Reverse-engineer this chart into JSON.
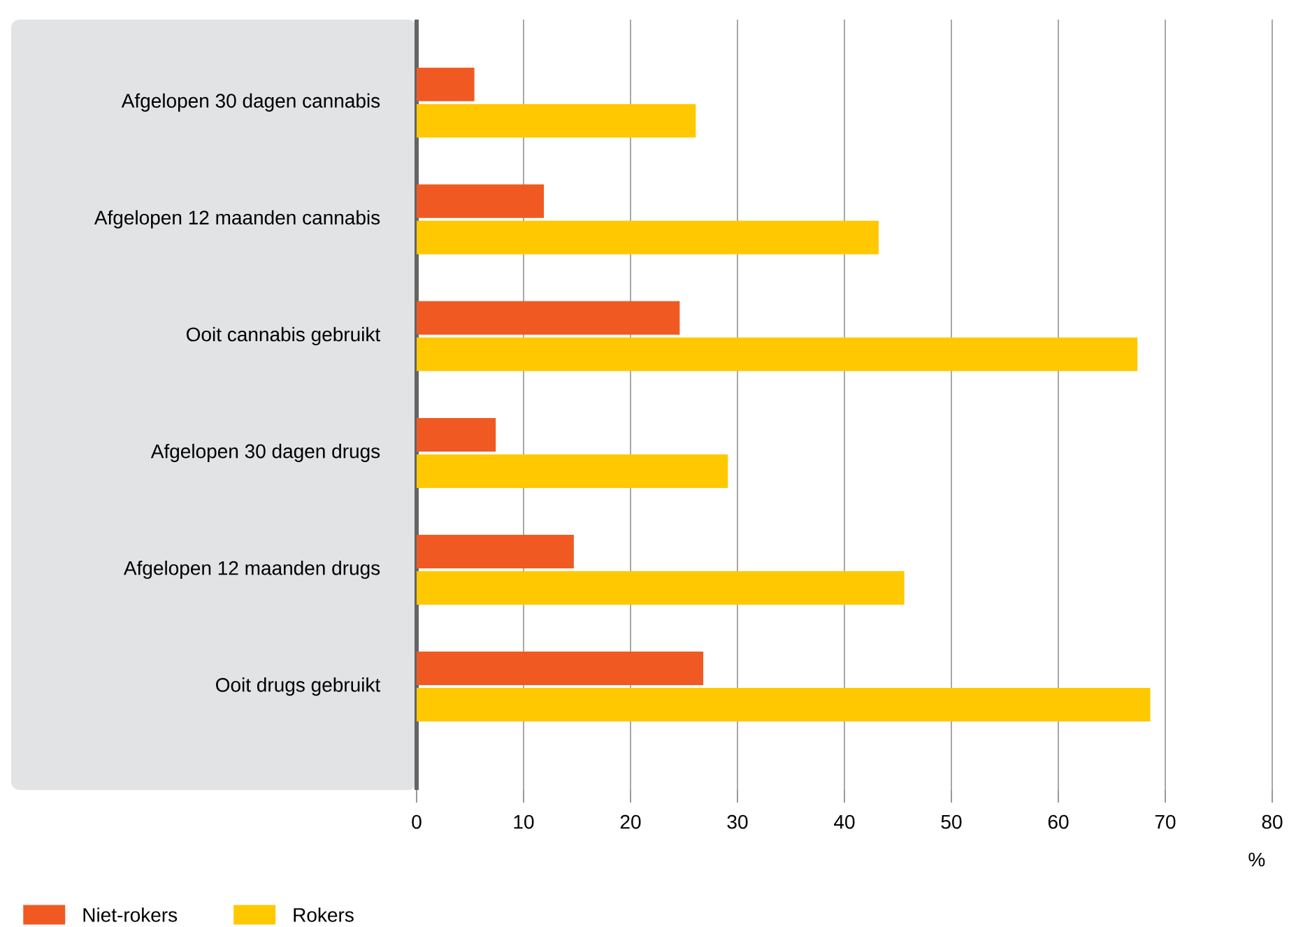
{
  "chart_data": {
    "type": "bar",
    "orientation": "horizontal",
    "categories": [
      "Afgelopen 30 dagen cannabis",
      "Afgelopen 12 maanden cannabis",
      "Ooit cannabis gebruikt",
      "Afgelopen 30 dagen drugs",
      "Afgelopen 12 maanden drugs",
      "Ooit drugs gebruikt"
    ],
    "series": [
      {
        "name": "Niet-rokers",
        "color": "#f05a22",
        "values": [
          5.4,
          11.9,
          24.6,
          7.4,
          14.7,
          26.8
        ]
      },
      {
        "name": "Rokers",
        "color": "#ffc800",
        "values": [
          26.1,
          43.2,
          67.4,
          29.1,
          45.6,
          68.6
        ]
      }
    ],
    "xlabel": "%",
    "xlim": [
      0,
      80
    ],
    "xticks": [
      0,
      10,
      20,
      30,
      40,
      50,
      60,
      70,
      80
    ],
    "grid": "x",
    "legend": "bottom left"
  }
}
